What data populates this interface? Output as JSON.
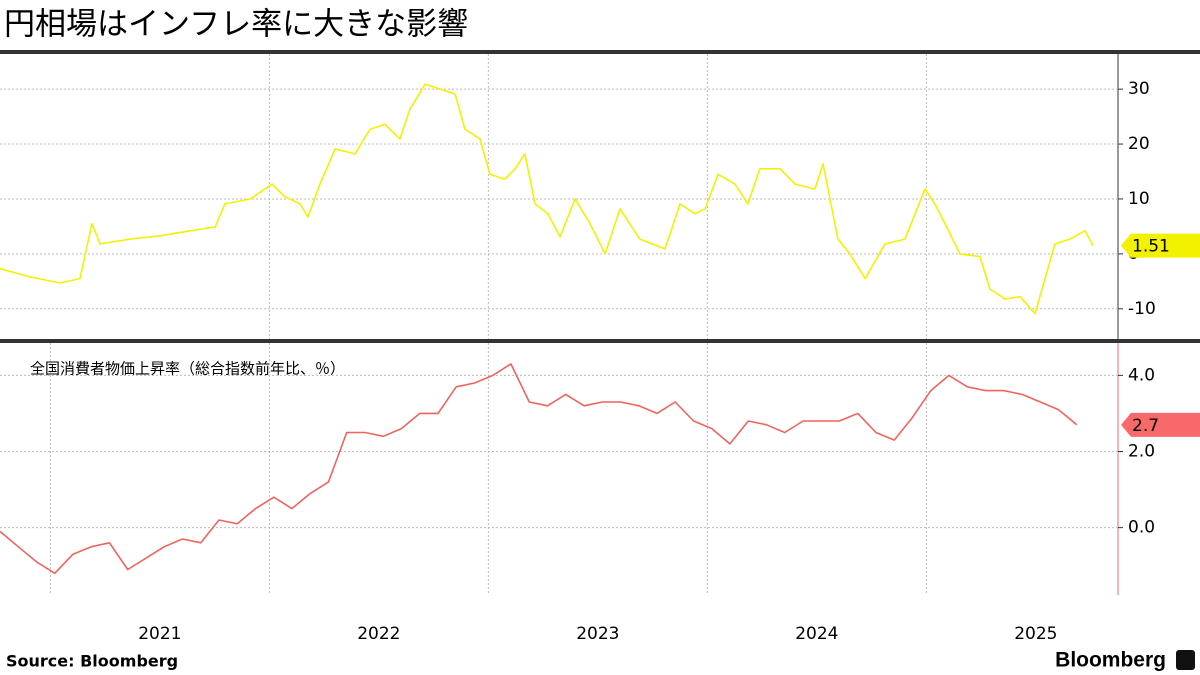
{
  "title": "円相場はインフレ率に大きな影響",
  "source": "Source:  Bloomberg",
  "brand": "Bloomberg",
  "chart_data": [
    {
      "type": "line",
      "x": [
        2020.77,
        2020.907,
        2021.044,
        2021.135,
        2021.19,
        2021.227,
        2021.364,
        2021.501,
        2021.638,
        2021.752,
        2021.797,
        2021.912,
        2022.012,
        2022.071,
        2022.14,
        2022.176,
        2022.231,
        2022.3,
        2022.391,
        2022.46,
        2022.528,
        2022.596,
        2022.642,
        2022.711,
        2022.779,
        2022.848,
        2022.893,
        2022.962,
        2023.007,
        2023.076,
        2023.122,
        2023.167,
        2023.213,
        2023.272,
        2023.327,
        2023.396,
        2023.464,
        2023.533,
        2023.601,
        2023.692,
        2023.807,
        2023.875,
        2023.944,
        2023.989,
        2024.049,
        2024.126,
        2024.185,
        2024.24,
        2024.332,
        2024.4,
        2024.491,
        2024.528,
        2024.596,
        2024.651,
        2024.72,
        2024.811,
        2024.902,
        2024.994,
        2025.039,
        2025.085,
        2025.153,
        2025.245,
        2025.29,
        2025.359,
        2025.428,
        2025.496,
        2025.587,
        2025.656,
        2025.724,
        2025.761
      ],
      "series": [
        {
          "color": "#f2f200",
          "values": [
            -2.7,
            -4.2,
            -5.3,
            -4.5,
            5.5,
            1.8,
            2.7,
            3.3,
            4.2,
            4.9,
            9.1,
            10,
            12.7,
            10.4,
            9.1,
            6.7,
            12.7,
            19.1,
            18.2,
            22.7,
            23.6,
            20.9,
            26.4,
            30.9,
            30,
            29.1,
            22.7,
            20.9,
            14.5,
            13.6,
            15.5,
            18.2,
            9.1,
            7.3,
            3.1,
            10,
            5.5,
            0,
            8.2,
            2.7,
            0.9,
            9.1,
            7.3,
            8.2,
            14.5,
            12.7,
            9.1,
            15.5,
            15.5,
            12.7,
            11.8,
            16.4,
            2.7,
            0,
            -4.5,
            1.8,
            2.7,
            11.8,
            9.1,
            5.5,
            0,
            -0.5,
            -6.4,
            -8.2,
            -7.8,
            -10.9,
            1.8,
            2.7,
            4.2,
            1.51
          ]
        }
      ],
      "xlim": [
        2020.77,
        2025.875
      ],
      "xticks": [
        2022,
        2023,
        2024,
        2025
      ],
      "ylim": [
        -15.5,
        36.4
      ],
      "yticks": [
        -10,
        0,
        10,
        20,
        30
      ],
      "grid": true
    },
    {
      "type": "line",
      "x": [
        2020.77,
        2020.853,
        2020.937,
        2021.02,
        2021.103,
        2021.187,
        2021.27,
        2021.353,
        2021.437,
        2021.52,
        2021.603,
        2021.687,
        2021.77,
        2021.853,
        2021.937,
        2022.02,
        2022.103,
        2022.187,
        2022.27,
        2022.353,
        2022.437,
        2022.52,
        2022.603,
        2022.687,
        2022.77,
        2022.853,
        2022.937,
        2023.02,
        2023.103,
        2023.187,
        2023.27,
        2023.353,
        2023.437,
        2023.52,
        2023.603,
        2023.687,
        2023.77,
        2023.853,
        2023.937,
        2024.02,
        2024.103,
        2024.187,
        2024.27,
        2024.353,
        2024.437,
        2024.52,
        2024.603,
        2024.687,
        2024.77,
        2024.853,
        2024.937,
        2025.02,
        2025.103,
        2025.187,
        2025.27,
        2025.353,
        2025.437,
        2025.52,
        2025.603,
        2025.687
      ],
      "series": [
        {
          "name": "全国消費者物価上昇率（総合指数前年比、％）",
          "color": "#f0645f",
          "values": [
            -0.1,
            -0.5,
            -0.9,
            -1.2,
            -0.7,
            -0.5,
            -0.4,
            -1.1,
            -0.8,
            -0.5,
            -0.3,
            -0.4,
            0.2,
            0.1,
            0.5,
            0.8,
            0.5,
            0.9,
            1.2,
            2.5,
            2.5,
            2.4,
            2.6,
            3.0,
            3.0,
            3.7,
            3.8,
            4.0,
            4.3,
            3.3,
            3.2,
            3.5,
            3.2,
            3.3,
            3.3,
            3.2,
            3.0,
            3.3,
            2.8,
            2.6,
            2.2,
            2.8,
            2.7,
            2.5,
            2.8,
            2.8,
            2.8,
            3.0,
            2.5,
            2.3,
            2.9,
            3.6,
            4.0,
            3.7,
            3.6,
            3.6,
            3.5,
            3.3,
            3.1,
            2.7
          ]
        }
      ],
      "xlim": [
        2020.77,
        2025.875
      ],
      "xticks": [
        {
          "value": 2021,
          "label": "2021"
        },
        {
          "value": 2022,
          "label": "2022"
        },
        {
          "value": 2023,
          "label": "2023"
        },
        {
          "value": 2024,
          "label": "2024"
        },
        {
          "value": 2025,
          "label": "2025"
        }
      ],
      "ylim": [
        -1.77,
        4.85
      ],
      "yticks": [
        {
          "value": 0,
          "label": "0.0"
        },
        {
          "value": 2,
          "label": "2.0"
        },
        {
          "value": 4,
          "label": "4.0"
        }
      ],
      "grid": true
    }
  ]
}
